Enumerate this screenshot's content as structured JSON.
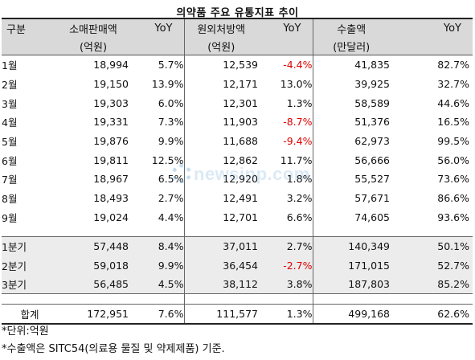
{
  "title": "의약품 주요 유통지표 추이",
  "header": {
    "col0": "구분",
    "retail": [
      "소매판매액",
      "(억원)"
    ],
    "hospital": [
      "원외처방액",
      "(억원)"
    ],
    "export": [
      "수출액",
      "(만달러)"
    ],
    "yoy": "YoY"
  },
  "months": [
    {
      "label": "1월",
      "retail": "18,994",
      "retail_yoy": "5.7%",
      "rx": "12,539",
      "rx_yoy": "-4.4%",
      "exp": "41,835",
      "exp_yoy": "82.7%"
    },
    {
      "label": "2월",
      "retail": "19,150",
      "retail_yoy": "13.9%",
      "rx": "12,171",
      "rx_yoy": "13.0%",
      "exp": "39,925",
      "exp_yoy": "32.7%"
    },
    {
      "label": "3월",
      "retail": "19,303",
      "retail_yoy": "6.0%",
      "rx": "12,301",
      "rx_yoy": "1.3%",
      "exp": "58,589",
      "exp_yoy": "44.6%"
    },
    {
      "label": "4월",
      "retail": "19,331",
      "retail_yoy": "7.3%",
      "rx": "11,903",
      "rx_yoy": "-8.7%",
      "exp": "51,376",
      "exp_yoy": "16.5%"
    },
    {
      "label": "5월",
      "retail": "19,876",
      "retail_yoy": "9.9%",
      "rx": "11,688",
      "rx_yoy": "-9.4%",
      "exp": "62,973",
      "exp_yoy": "99.5%"
    },
    {
      "label": "6월",
      "retail": "19,811",
      "retail_yoy": "12.5%",
      "rx": "12,862",
      "rx_yoy": "11.7%",
      "exp": "56,666",
      "exp_yoy": "56.0%"
    },
    {
      "label": "7월",
      "retail": "18,967",
      "retail_yoy": "6.5%",
      "rx": "12,920",
      "rx_yoy": "1.8%",
      "exp": "55,527",
      "exp_yoy": "73.6%"
    },
    {
      "label": "8월",
      "retail": "18,493",
      "retail_yoy": "2.7%",
      "rx": "12,491",
      "rx_yoy": "3.2%",
      "exp": "57,671",
      "exp_yoy": "86.6%"
    },
    {
      "label": "9월",
      "retail": "19,024",
      "retail_yoy": "4.4%",
      "rx": "12,701",
      "rx_yoy": "6.6%",
      "exp": "74,605",
      "exp_yoy": "93.6%"
    }
  ],
  "quarters": [
    {
      "label": "1분기",
      "retail": "57,448",
      "retail_yoy": "8.4%",
      "rx": "37,011",
      "rx_yoy": "2.7%",
      "exp": "140,349",
      "exp_yoy": "50.1%"
    },
    {
      "label": "2분기",
      "retail": "59,018",
      "retail_yoy": "9.9%",
      "rx": "36,454",
      "rx_yoy": "-2.7%",
      "exp": "171,015",
      "exp_yoy": "52.7%"
    },
    {
      "label": "3분기",
      "retail": "56,485",
      "retail_yoy": "4.5%",
      "rx": "38,112",
      "rx_yoy": "3.8%",
      "exp": "187,803",
      "exp_yoy": "85.2%"
    }
  ],
  "total": {
    "label": "합계",
    "retail": "172,951",
    "retail_yoy": "7.6%",
    "rx": "111,577",
    "rx_yoy": "1.3%",
    "exp": "499,168",
    "exp_yoy": "62.6%"
  },
  "notes": [
    "*단위:억원",
    "*수출액은 SITC54(의료용 물질 및 약제제품) 기준."
  ],
  "watermark": "newsinp.com",
  "colors": {
    "negative": "#e00000",
    "header_bg": "#d9d9d9",
    "quarter_bg": "#ececec"
  }
}
